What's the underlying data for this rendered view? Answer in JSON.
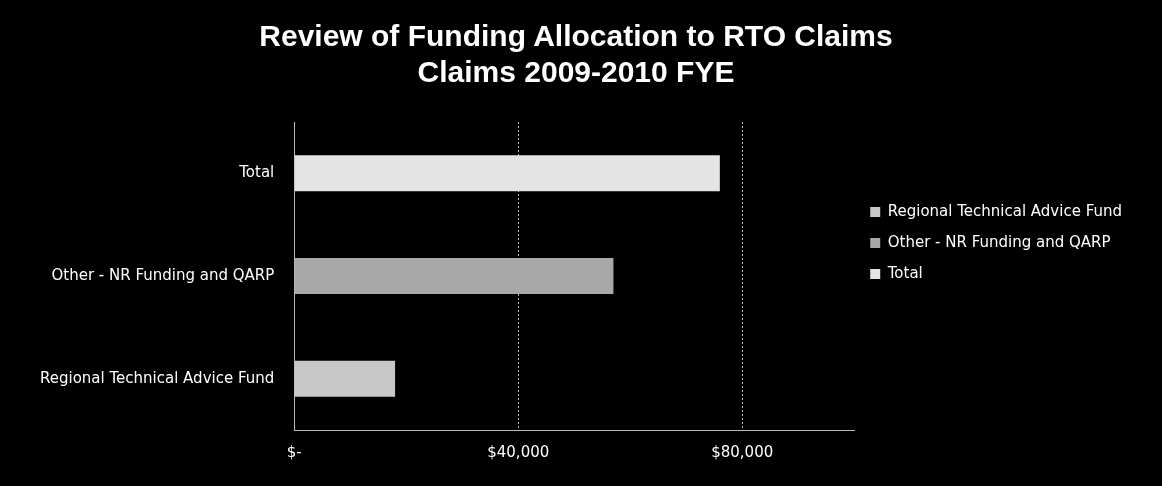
{
  "chart_data": {
    "type": "bar",
    "orientation": "horizontal",
    "stacked": true,
    "title": "Review of Funding Allocation to RTO Claims",
    "subtitle": "Claims 2009-2010 FYE",
    "categories": [
      "Total",
      "Other - NR Funding and QARP",
      "Regional Technical Advice Fund"
    ],
    "series": [
      {
        "name": "Regional Technical Advice Fund",
        "color": "#c8c8c8",
        "values": [
          null,
          null,
          18000
        ]
      },
      {
        "name": "Other - NR Funding and QARP",
        "color": "#a8a8a8",
        "values": [
          null,
          57000,
          null
        ]
      },
      {
        "name": "Total",
        "color": "#e4e4e4",
        "values": [
          76000,
          null,
          null
        ]
      }
    ],
    "xlim": [
      0,
      100000
    ],
    "xticks": [
      {
        "value": 0,
        "label": "$-"
      },
      {
        "value": 40000,
        "label": "$40,000"
      },
      {
        "value": 80000,
        "label": "$80,000"
      }
    ],
    "grid": "x",
    "legend": "right"
  }
}
